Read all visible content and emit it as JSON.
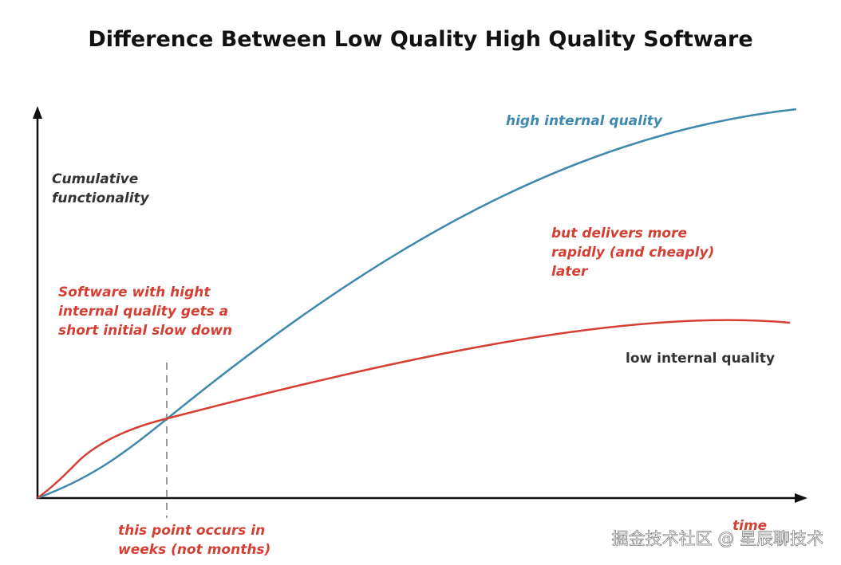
{
  "header": {
    "title": "Difference Between Low Quality High Quality Software"
  },
  "axes": {
    "y_label": [
      "Cumulative",
      "functionality"
    ],
    "x_label": "time"
  },
  "curves": {
    "high": "high internal quality",
    "low": "low internal quality"
  },
  "annotations": {
    "slowdown": [
      "Software with hight",
      "internal quality gets a",
      "short initial slow down"
    ],
    "delivers": [
      "but delivers more",
      "rapidly (and cheaply)",
      "later"
    ],
    "point": [
      "this point occurs in",
      "weeks (not months)"
    ]
  },
  "watermark": "掘金技术社区 @ 星辰聊技术"
}
